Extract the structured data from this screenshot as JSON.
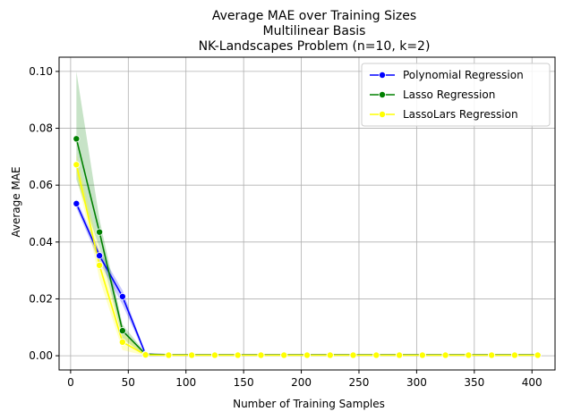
{
  "chart_data": {
    "type": "line",
    "title_lines": [
      "Average MAE over Training Sizes",
      "Multilinear Basis",
      "NK-Landscapes Problem (n=10, k=2)"
    ],
    "xlabel": "Number of Training Samples",
    "ylabel": "Average MAE",
    "xlim": [
      -10,
      420
    ],
    "ylim": [
      -0.005,
      0.105
    ],
    "xticks": [
      0,
      50,
      100,
      150,
      200,
      250,
      300,
      350,
      400
    ],
    "yticks": [
      0.0,
      0.02,
      0.04,
      0.06,
      0.08,
      0.1
    ],
    "ytick_labels": [
      "0.00",
      "0.02",
      "0.04",
      "0.06",
      "0.08",
      "0.10"
    ],
    "grid": true,
    "legend_position": "top-right",
    "x": [
      5,
      25,
      45,
      65,
      85,
      105,
      125,
      145,
      165,
      185,
      205,
      225,
      245,
      265,
      285,
      305,
      325,
      345,
      365,
      385,
      405
    ],
    "series": [
      {
        "name": "Polynomial Regression",
        "color": "#0000ff",
        "values": [
          0.0535,
          0.0352,
          0.0208,
          0.0005,
          0.0003,
          0.0003,
          0.0003,
          0.0003,
          0.0003,
          0.0003,
          0.0003,
          0.0003,
          0.0003,
          0.0003,
          0.0003,
          0.0003,
          0.0003,
          0.0003,
          0.0003,
          0.0003,
          0.0003
        ],
        "lower": [
          0.052,
          0.033,
          0.018,
          0.0,
          0.0,
          0.0,
          0.0,
          0.0,
          0.0,
          0.0,
          0.0,
          0.0,
          0.0,
          0.0,
          0.0,
          0.0,
          0.0,
          0.0,
          0.0,
          0.0,
          0.0
        ],
        "upper": [
          0.055,
          0.037,
          0.023,
          0.001,
          0.0006,
          0.0006,
          0.0006,
          0.0006,
          0.0006,
          0.0006,
          0.0006,
          0.0006,
          0.0006,
          0.0006,
          0.0006,
          0.0006,
          0.0006,
          0.0006,
          0.0006,
          0.0006,
          0.0006
        ]
      },
      {
        "name": "Lasso Regression",
        "color": "#008000",
        "values": [
          0.0763,
          0.0435,
          0.0088,
          0.0005,
          0.0003,
          0.0003,
          0.0003,
          0.0003,
          0.0003,
          0.0003,
          0.0003,
          0.0003,
          0.0003,
          0.0003,
          0.0003,
          0.0003,
          0.0003,
          0.0003,
          0.0003,
          0.0003,
          0.0003
        ],
        "lower": [
          0.062,
          0.038,
          0.006,
          0.0,
          0.0,
          0.0,
          0.0,
          0.0,
          0.0,
          0.0,
          0.0,
          0.0,
          0.0,
          0.0,
          0.0,
          0.0,
          0.0,
          0.0,
          0.0,
          0.0,
          0.0
        ],
        "upper": [
          0.1,
          0.048,
          0.011,
          0.001,
          0.0006,
          0.0006,
          0.0006,
          0.0006,
          0.0006,
          0.0006,
          0.0006,
          0.0006,
          0.0006,
          0.0006,
          0.0006,
          0.0006,
          0.0006,
          0.0006,
          0.0006,
          0.0006,
          0.0006
        ]
      },
      {
        "name": "LassoLars Regression",
        "color": "#ffff00",
        "values": [
          0.0672,
          0.0318,
          0.0048,
          0.0003,
          0.0002,
          0.0002,
          0.0002,
          0.0002,
          0.0002,
          0.0002,
          0.0002,
          0.0002,
          0.0002,
          0.0002,
          0.0002,
          0.0002,
          0.0002,
          0.0002,
          0.0002,
          0.0002,
          0.0002
        ],
        "lower": [
          0.064,
          0.027,
          0.002,
          0.0,
          0.0,
          0.0,
          0.0,
          0.0,
          0.0,
          0.0,
          0.0,
          0.0,
          0.0,
          0.0,
          0.0,
          0.0,
          0.0,
          0.0,
          0.0,
          0.0,
          0.0
        ],
        "upper": [
          0.071,
          0.037,
          0.008,
          0.0008,
          0.0005,
          0.0005,
          0.0005,
          0.0005,
          0.0005,
          0.0005,
          0.0005,
          0.0005,
          0.0005,
          0.0005,
          0.0005,
          0.0005,
          0.0005,
          0.0005,
          0.0005,
          0.0005,
          0.0005
        ]
      }
    ]
  }
}
